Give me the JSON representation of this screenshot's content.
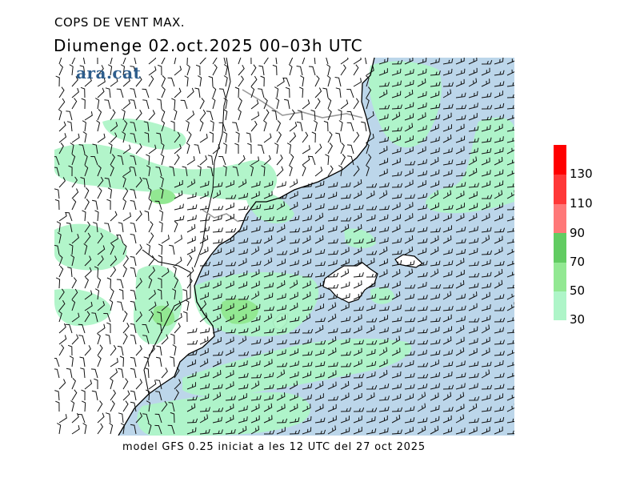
{
  "header": {
    "title": "COPS DE VENT MAX.",
    "subtitle": "Diumenge  02.oct.2025  00–03h  UTC"
  },
  "logo": {
    "text": "ara.cat",
    "color": "#2d5d8c"
  },
  "footer": {
    "text": "model GFS 0.25 iniciat a les 12 UTC del 27 oct 2025"
  },
  "legend": {
    "labels": [
      "130",
      "110",
      "90",
      "70",
      "50",
      "30"
    ],
    "colors": {
      "above_130": "#ff0000",
      "110_130": "#ff3838",
      "90_110": "#ff7878",
      "70_90": "#62cc62",
      "50_70": "#92e892",
      "30_50": "#aef5c8"
    }
  },
  "map": {
    "sea_color": "#bcd6ea",
    "land_color": "#ffffff",
    "coast_color": "#000000",
    "border_color": "#999999",
    "icons": [
      "wind-barb-icon"
    ]
  }
}
